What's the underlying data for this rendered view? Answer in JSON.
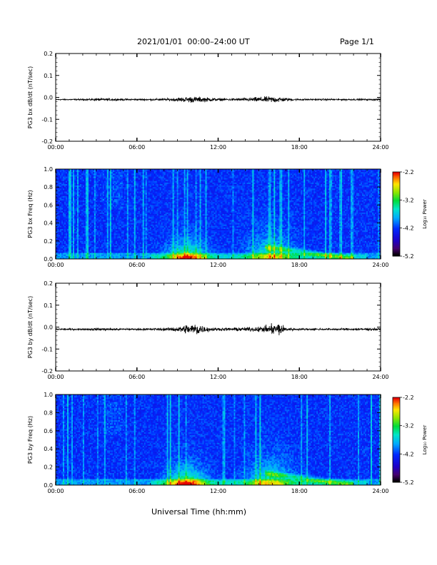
{
  "header": {
    "title": "2021/01/01  00:00–24:00 UT",
    "page": "Page 1/1"
  },
  "xlabel": "Universal Time (hh:mm)",
  "colorbar": {
    "label": "Log₁₀ Power",
    "ticks": [
      "-2.2",
      "-3.2",
      "-4.2",
      "-5.2"
    ]
  },
  "chart_data": [
    {
      "type": "line",
      "ylabel": "PG3 bx dB/dt (nT/sec)",
      "xlim": [
        0,
        24
      ],
      "ylim": [
        -0.2,
        0.2
      ],
      "xticks": [
        "00:00",
        "06:00",
        "12:00",
        "18:00",
        "24:00"
      ],
      "yticks": [
        "0.2",
        "0.1",
        "0.0",
        "-0.1",
        "-0.2"
      ],
      "baseline": -0.01,
      "envelope": {
        "hours": [
          0,
          2,
          3,
          6,
          8,
          9,
          10,
          11,
          12,
          13,
          14,
          15,
          16,
          16.5,
          17,
          18,
          20,
          22,
          24
        ],
        "half_width": [
          0.004,
          0.004,
          0.008,
          0.005,
          0.006,
          0.012,
          0.02,
          0.015,
          0.008,
          0.008,
          0.01,
          0.016,
          0.02,
          0.018,
          0.01,
          0.006,
          0.005,
          0.005,
          0.005
        ]
      }
    },
    {
      "type": "heatmap",
      "ylabel": "PG3 bx Freq (Hz)",
      "xlim": [
        0,
        24
      ],
      "ylim": [
        0.0,
        1.0
      ],
      "xticks": [
        "00:00",
        "06:00",
        "12:00",
        "18:00",
        "24:00"
      ],
      "yticks": [
        "1.0",
        "0.8",
        "0.6",
        "0.4",
        "0.2",
        "0.0"
      ],
      "zlim": [
        -5.2,
        -2.2
      ]
    },
    {
      "type": "line",
      "ylabel": "PG3 by dB/dt (nT/sec)",
      "xlim": [
        0,
        24
      ],
      "ylim": [
        -0.2,
        0.2
      ],
      "xticks": [
        "00:00",
        "06:00",
        "12:00",
        "18:00",
        "24:00"
      ],
      "yticks": [
        "0.2",
        "0.1",
        "0.0",
        "-0.1",
        "-0.2"
      ],
      "baseline": -0.01,
      "envelope": {
        "hours": [
          0,
          2,
          3,
          6,
          8,
          9,
          10,
          10.5,
          11,
          12,
          13,
          14,
          15,
          16,
          16.5,
          17,
          18,
          20,
          22,
          24
        ],
        "half_width": [
          0.005,
          0.005,
          0.008,
          0.006,
          0.008,
          0.015,
          0.035,
          0.04,
          0.018,
          0.008,
          0.01,
          0.012,
          0.016,
          0.03,
          0.045,
          0.012,
          0.006,
          0.006,
          0.007,
          0.007
        ]
      }
    },
    {
      "type": "heatmap",
      "ylabel": "PG3 by Freq (Hz)",
      "xlim": [
        0,
        24
      ],
      "ylim": [
        0.0,
        1.0
      ],
      "xticks": [
        "00:00",
        "06:00",
        "12:00",
        "18:00",
        "24:00"
      ],
      "yticks": [
        "1.0",
        "0.8",
        "0.6",
        "0.4",
        "0.2",
        "0.0"
      ],
      "zlim": [
        -5.2,
        -2.2
      ]
    }
  ]
}
